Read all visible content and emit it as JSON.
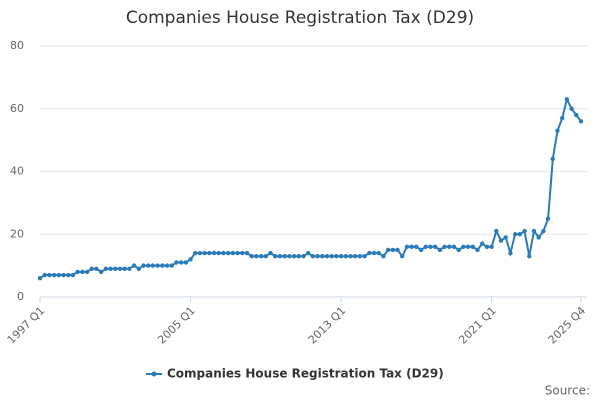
{
  "chart_data": {
    "type": "line",
    "title": "Companies House Registration Tax (D29)",
    "source": "Source:",
    "categories": [
      "1997 Q1",
      null,
      null,
      null,
      null,
      null,
      null,
      null,
      null,
      null,
      null,
      null,
      null,
      null,
      null,
      null,
      null,
      null,
      null,
      null,
      null,
      null,
      null,
      null,
      null,
      null,
      null,
      null,
      null,
      null,
      null,
      null,
      "2005 Q1",
      null,
      null,
      null,
      null,
      null,
      null,
      null,
      null,
      null,
      null,
      null,
      null,
      null,
      null,
      null,
      null,
      null,
      null,
      null,
      null,
      null,
      null,
      null,
      null,
      null,
      null,
      null,
      null,
      null,
      null,
      null,
      "2013 Q1",
      null,
      null,
      null,
      null,
      null,
      null,
      null,
      null,
      null,
      null,
      null,
      null,
      null,
      null,
      null,
      null,
      null,
      null,
      null,
      null,
      null,
      null,
      null,
      null,
      null,
      null,
      null,
      null,
      null,
      null,
      null,
      "2021 Q1",
      null,
      null,
      null,
      null,
      null,
      null,
      null,
      null,
      null,
      null,
      null,
      null,
      null,
      null,
      null,
      null,
      null,
      null,
      "2025 Q4"
    ],
    "series": [
      {
        "name": "Companies House Registration Tax (D29)",
        "color": "#2b7bb9",
        "values": [
          6,
          7,
          7,
          7,
          7,
          7,
          7,
          7,
          8,
          8,
          8,
          9,
          9,
          8,
          9,
          9,
          9,
          9,
          9,
          9,
          10,
          9,
          10,
          10,
          10,
          10,
          10,
          10,
          10,
          11,
          11,
          11,
          12,
          14,
          14,
          14,
          14,
          14,
          14,
          14,
          14,
          14,
          14,
          14,
          14,
          13,
          13,
          13,
          13,
          14,
          13,
          13,
          13,
          13,
          13,
          13,
          13,
          14,
          13,
          13,
          13,
          13,
          13,
          13,
          13,
          13,
          13,
          13,
          13,
          13,
          14,
          14,
          14,
          13,
          15,
          15,
          15,
          13,
          16,
          16,
          16,
          15,
          16,
          16,
          16,
          15,
          16,
          16,
          16,
          15,
          16,
          16,
          16,
          15,
          17,
          16,
          16,
          21,
          18,
          19,
          14,
          20,
          20,
          21,
          13,
          21,
          19,
          21,
          25,
          44,
          53,
          57,
          63,
          60,
          58,
          56
        ]
      }
    ],
    "ylim": [
      0,
      85
    ],
    "yticks": [
      0,
      20,
      40,
      60,
      80
    ],
    "grid": true
  }
}
